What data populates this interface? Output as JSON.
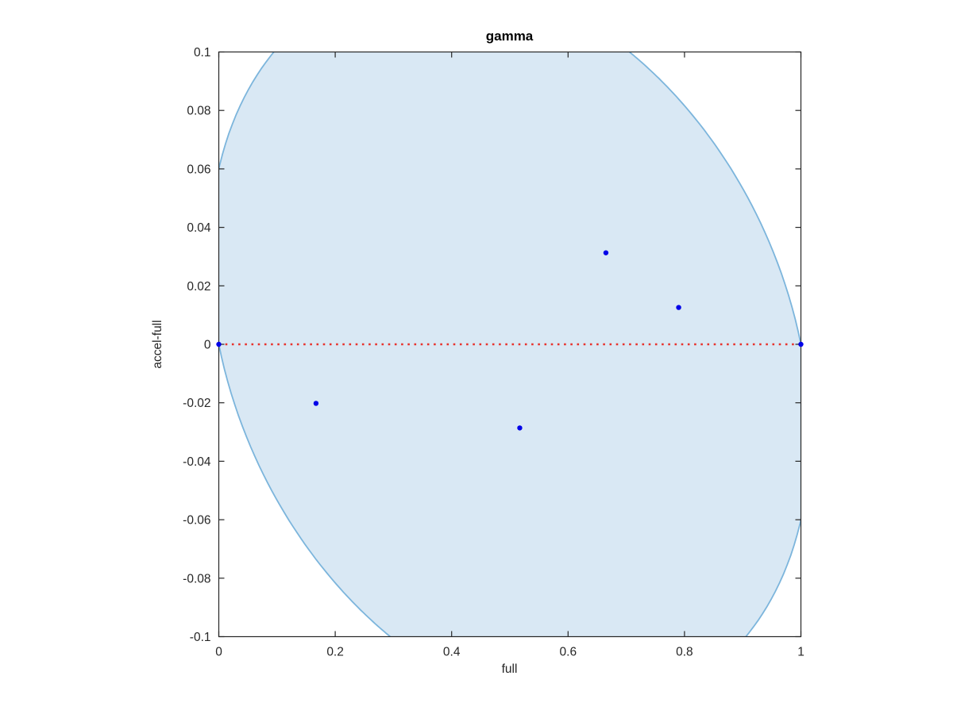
{
  "chart_data": {
    "type": "scatter",
    "title": "gamma",
    "xlabel": "full",
    "ylabel": "accel-full",
    "xlim": [
      0,
      1
    ],
    "ylim": [
      -0.1,
      0.1
    ],
    "grid": false,
    "legend": null,
    "xticks": {
      "values": [
        0,
        0.2,
        0.4,
        0.6,
        0.8,
        1
      ],
      "labels": [
        "0",
        "0.2",
        "0.4",
        "0.6",
        "0.8",
        "1"
      ]
    },
    "yticks": {
      "values": [
        -0.1,
        -0.08,
        -0.06,
        -0.04,
        -0.02,
        0,
        0.02,
        0.04,
        0.06,
        0.08,
        0.1
      ],
      "labels": [
        "-0.1",
        "-0.08",
        "-0.06",
        "-0.04",
        "-0.02",
        "0",
        "0.02",
        "0.04",
        "0.06",
        "0.08",
        "0.1"
      ]
    },
    "points": [
      [
        0.665,
        0.0313
      ],
      [
        0.79,
        0.0126
      ],
      [
        0.167,
        -0.0202
      ],
      [
        0.517,
        -0.0286
      ]
    ],
    "endpoint_markers": [
      [
        0,
        0
      ],
      [
        1,
        0
      ]
    ],
    "zero_line": {
      "from": [
        0,
        0
      ],
      "to": [
        1,
        0
      ],
      "style": "dotted",
      "color": "#e8322c"
    },
    "region": {
      "shape": "rotated-ellipse",
      "description": "shaded elliptical region through (0,0) and (1,0), clipped to axis limits",
      "center": [
        0.5,
        0
      ],
      "conic": {
        "A": 4,
        "B": 8,
        "C": 66.67
      },
      "fill": "#d9e8f4",
      "stroke": "#7cb5dc"
    },
    "marker_color": "#0202e8",
    "axis_color": "#262626"
  }
}
